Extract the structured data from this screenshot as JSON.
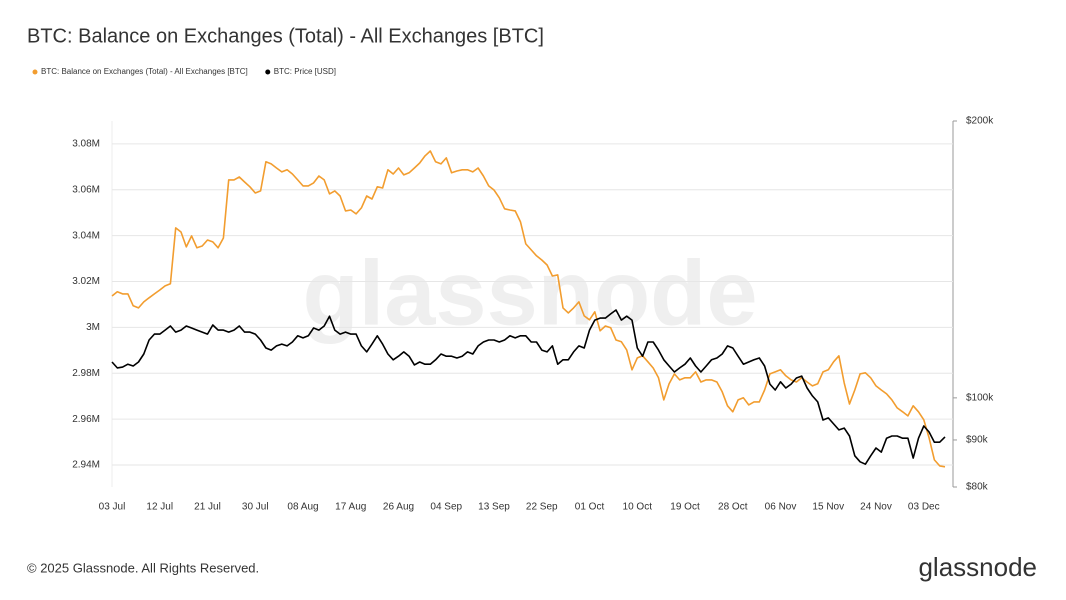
{
  "chart_data": {
    "type": "line",
    "title": "BTC: Balance on Exchanges (Total) - All Exchanges [BTC]",
    "watermark": "glassnode",
    "categories": [
      "03 Jul",
      null,
      null,
      null,
      null,
      null,
      null,
      null,
      null,
      "12 Jul",
      null,
      null,
      null,
      null,
      null,
      null,
      null,
      null,
      "21 Jul",
      null,
      null,
      null,
      null,
      null,
      null,
      null,
      null,
      "30 Jul",
      null,
      null,
      null,
      null,
      null,
      null,
      null,
      null,
      "08 Aug",
      null,
      null,
      null,
      null,
      null,
      null,
      null,
      null,
      "17 Aug",
      null,
      null,
      null,
      null,
      null,
      null,
      null,
      null,
      "26 Aug",
      null,
      null,
      null,
      null,
      null,
      null,
      null,
      null,
      "04 Sep",
      null,
      null,
      null,
      null,
      null,
      null,
      null,
      null,
      "13 Sep",
      null,
      null,
      null,
      null,
      null,
      null,
      null,
      null,
      "22 Sep",
      null,
      null,
      null,
      null,
      null,
      null,
      null,
      null,
      "01 Oct",
      null,
      null,
      null,
      null,
      null,
      null,
      null,
      null,
      "10 Oct",
      null,
      null,
      null,
      null,
      null,
      null,
      null,
      null,
      "19 Oct",
      null,
      null,
      null,
      null,
      null,
      null,
      null,
      null,
      "28 Oct",
      null,
      null,
      null,
      null,
      null,
      null,
      null,
      null,
      "06 Nov",
      null,
      null,
      null,
      null,
      null,
      null,
      null,
      null,
      "15 Nov",
      null,
      null,
      null,
      null,
      null,
      null,
      null,
      null,
      "24 Nov",
      null,
      null,
      null,
      null,
      null,
      null,
      null,
      null,
      "03 Dec",
      null,
      null,
      null,
      null
    ],
    "series": [
      {
        "name": "BTC: Balance on Exchanges (Total) - All Exchanges [BTC]",
        "color": "#f29d2f",
        "values": [
          3.0137,
          3.0155,
          3.0146,
          3.0146,
          3.0094,
          3.0085,
          3.0111,
          3.0129,
          3.0146,
          3.0163,
          3.0181,
          3.019,
          3.0434,
          3.0416,
          3.0351,
          3.0399,
          3.0347,
          3.0355,
          3.0381,
          3.0373,
          3.0347,
          3.039,
          3.0643,
          3.0643,
          3.0656,
          3.0634,
          3.0613,
          3.0586,
          3.0595,
          3.0722,
          3.0713,
          3.0695,
          3.0678,
          3.0687,
          3.0669,
          3.0643,
          3.0617,
          3.0617,
          3.063,
          3.066,
          3.0643,
          3.0582,
          3.0595,
          3.0573,
          3.0508,
          3.0512,
          3.0495,
          3.0521,
          3.0573,
          3.056,
          3.0613,
          3.0608,
          3.0687,
          3.0669,
          3.0695,
          3.0665,
          3.0674,
          3.0695,
          3.0717,
          3.0748,
          3.0769,
          3.0722,
          3.0713,
          3.0739,
          3.0674,
          3.0682,
          3.0687,
          3.0687,
          3.0678,
          3.0695,
          3.066,
          3.0617,
          3.0599,
          3.0565,
          3.0517,
          3.0512,
          3.0508,
          3.046,
          3.0364,
          3.0338,
          3.0312,
          3.0294,
          3.0272,
          3.0224,
          3.0229,
          3.0085,
          3.0063,
          3.0085,
          3.0111,
          3.005,
          3.0033,
          3.0068,
          2.9985,
          3.0006,
          2.9998,
          2.9945,
          2.9937,
          2.9902,
          2.9815,
          2.9867,
          2.9876,
          2.985,
          2.9823,
          2.978,
          2.9684,
          2.9754,
          2.9797,
          2.9771,
          2.978,
          2.978,
          2.9806,
          2.9762,
          2.9771,
          2.9771,
          2.9762,
          2.9719,
          2.9658,
          2.9632,
          2.9684,
          2.9693,
          2.9662,
          2.9675,
          2.9675,
          2.9727,
          2.9797,
          2.9806,
          2.9815,
          2.9789,
          2.9771,
          2.9762,
          2.978,
          2.9762,
          2.9745,
          2.9754,
          2.9806,
          2.9815,
          2.985,
          2.9876,
          2.9758,
          2.9666,
          2.9727,
          2.9797,
          2.9802,
          2.978,
          2.9745,
          2.9727,
          2.971,
          2.9684,
          2.9649,
          2.9632,
          2.9614,
          2.9658,
          2.9632,
          2.9597,
          2.9518,
          2.9422,
          2.9396,
          2.9392
        ]
      },
      {
        "name": "BTC: Price [USD]",
        "color": "#000000",
        "axis": "y2",
        "values": [
          109400,
          107800,
          108000,
          108800,
          108300,
          109400,
          111600,
          115600,
          117300,
          117300,
          118500,
          119700,
          117900,
          118500,
          119700,
          119100,
          118500,
          117900,
          117300,
          120000,
          118500,
          118500,
          117900,
          118500,
          119700,
          117900,
          117900,
          117300,
          115600,
          113300,
          112700,
          113900,
          114400,
          113900,
          115000,
          116800,
          116200,
          116800,
          119100,
          118500,
          119700,
          122700,
          118500,
          117300,
          117900,
          117300,
          117300,
          113900,
          112200,
          114400,
          116800,
          114400,
          111600,
          110000,
          111000,
          112200,
          111000,
          108600,
          109400,
          108800,
          108800,
          110000,
          111600,
          111000,
          111000,
          110500,
          111000,
          112200,
          111600,
          113900,
          115000,
          115600,
          115600,
          115000,
          115600,
          116800,
          116200,
          116800,
          116800,
          115000,
          115000,
          112700,
          112200,
          113900,
          108800,
          110000,
          110000,
          112200,
          113900,
          113300,
          118500,
          121500,
          122100,
          122100,
          123400,
          124600,
          121500,
          122700,
          121500,
          113300,
          111000,
          115000,
          115000,
          112700,
          110000,
          108300,
          106700,
          107800,
          108800,
          110500,
          108300,
          106700,
          108300,
          110000,
          110500,
          111600,
          113900,
          113300,
          111000,
          108800,
          109400,
          110000,
          110500,
          108300,
          103500,
          102000,
          104100,
          102500,
          103500,
          105100,
          105600,
          102500,
          100500,
          99000,
          94600,
          95100,
          93700,
          92300,
          92700,
          90900,
          86500,
          85200,
          84700,
          86500,
          88200,
          87300,
          90400,
          90900,
          90900,
          90400,
          90400,
          86000,
          90400,
          93200,
          91800,
          89500,
          89500,
          90700
        ]
      }
    ],
    "ylim": [
      2.9304,
      3.09
    ],
    "yticks": [
      {
        "value": 2.94,
        "label": "2.94M"
      },
      {
        "value": 2.96,
        "label": "2.96M"
      },
      {
        "value": 2.98,
        "label": "2.98M"
      },
      {
        "value": 3,
        "label": "3M"
      },
      {
        "value": 3.02,
        "label": "3.02M"
      },
      {
        "value": 3.04,
        "label": "3.04M"
      },
      {
        "value": 3.06,
        "label": "3.06M"
      },
      {
        "value": 3.08,
        "label": "3.08M"
      }
    ],
    "y2lim": [
      80000,
      200000
    ],
    "y2log": true,
    "y2ticks": [
      {
        "value": 80000,
        "label": "$80k"
      },
      {
        "value": 90000,
        "label": "$90k"
      },
      {
        "value": 100000,
        "label": "$100k"
      },
      {
        "value": 200000,
        "label": "$200k"
      }
    ],
    "grid": true,
    "legend": "top-left"
  },
  "footer": {
    "copyright": "© 2025 Glassnode. All Rights Reserved.",
    "logo": "glassnode"
  }
}
